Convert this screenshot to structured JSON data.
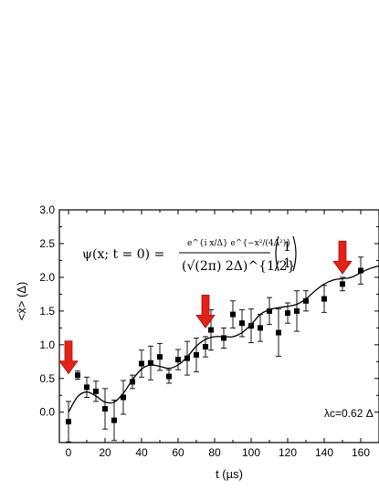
{
  "chart_data": {
    "type": "scatter",
    "xlabel": "t (µs)",
    "ylabel": "<x̂> (Δ)",
    "xlim": [
      -5,
      170
    ],
    "ylim": [
      -0.45,
      3.0
    ],
    "xticks": [
      "0",
      "20",
      "40",
      "60",
      "80",
      "100",
      "120",
      "140",
      "160"
    ],
    "yticks": [
      "0.0",
      "0.5",
      "1.0",
      "1.5",
      "2.0",
      "2.5",
      "3.0"
    ],
    "grid": false,
    "formula": {
      "lhs": "ψ(x; t = 0) =",
      "numerator": "e^{i x/Δ} e^{−x²/(4Δ²)}",
      "denominator": "(√(2π) 2Δ)^{1/2}",
      "vector": [
        "1",
        "1"
      ]
    },
    "annotation": "λc=0.62 Δ",
    "series": [
      {
        "marker": "square",
        "points": [
          {
            "x": 0,
            "y": -0.14,
            "err": 0.3
          },
          {
            "x": 5,
            "y": 0.55,
            "err": 0.06
          },
          {
            "x": 10,
            "y": 0.37,
            "err": 0.15
          },
          {
            "x": 15,
            "y": 0.31,
            "err": 0.15
          },
          {
            "x": 20,
            "y": 0.05,
            "err": 0.3
          },
          {
            "x": 25,
            "y": -0.12,
            "err": 0.3
          },
          {
            "x": 30,
            "y": 0.22,
            "err": 0.25
          },
          {
            "x": 35,
            "y": 0.45,
            "err": 0.1
          },
          {
            "x": 40,
            "y": 0.72,
            "err": 0.2
          },
          {
            "x": 45,
            "y": 0.73,
            "err": 0.25
          },
          {
            "x": 50,
            "y": 0.82,
            "err": 0.2
          },
          {
            "x": 55,
            "y": 0.53,
            "err": 0.1
          },
          {
            "x": 60,
            "y": 0.78,
            "err": 0.15
          },
          {
            "x": 65,
            "y": 0.8,
            "err": 0.25
          },
          {
            "x": 70,
            "y": 0.85,
            "err": 0.25
          },
          {
            "x": 75,
            "y": 0.97,
            "err": 0.15
          },
          {
            "x": 78,
            "y": 1.22,
            "err": 0.3
          },
          {
            "x": 85,
            "y": 1.1,
            "err": 0.15
          },
          {
            "x": 90,
            "y": 1.45,
            "err": 0.2
          },
          {
            "x": 95,
            "y": 1.32,
            "err": 0.2
          },
          {
            "x": 100,
            "y": 1.28,
            "err": 0.25
          },
          {
            "x": 105,
            "y": 1.25,
            "err": 0.2
          },
          {
            "x": 110,
            "y": 1.5,
            "err": 0.2
          },
          {
            "x": 115,
            "y": 1.18,
            "err": 0.35
          },
          {
            "x": 120,
            "y": 1.47,
            "err": 0.15
          },
          {
            "x": 125,
            "y": 1.5,
            "err": 0.3
          },
          {
            "x": 130,
            "y": 1.65,
            "err": 0.15
          },
          {
            "x": 140,
            "y": 1.68,
            "err": 0.2
          },
          {
            "x": 150,
            "y": 1.9,
            "err": 0.1
          },
          {
            "x": 160,
            "y": 2.1,
            "err": 0.2
          }
        ]
      }
    ],
    "fit_curve": [
      [
        0,
        0.0
      ],
      [
        5,
        0.23
      ],
      [
        10,
        0.3
      ],
      [
        15,
        0.24
      ],
      [
        20,
        0.15
      ],
      [
        25,
        0.15
      ],
      [
        30,
        0.28
      ],
      [
        35,
        0.48
      ],
      [
        40,
        0.64
      ],
      [
        45,
        0.7
      ],
      [
        50,
        0.68
      ],
      [
        55,
        0.65
      ],
      [
        60,
        0.7
      ],
      [
        65,
        0.82
      ],
      [
        70,
        0.98
      ],
      [
        75,
        1.08
      ],
      [
        80,
        1.12
      ],
      [
        85,
        1.12
      ],
      [
        90,
        1.12
      ],
      [
        95,
        1.18
      ],
      [
        100,
        1.3
      ],
      [
        105,
        1.45
      ],
      [
        110,
        1.52
      ],
      [
        115,
        1.55
      ],
      [
        120,
        1.57
      ],
      [
        125,
        1.6
      ],
      [
        130,
        1.68
      ],
      [
        135,
        1.8
      ],
      [
        140,
        1.9
      ],
      [
        145,
        1.96
      ],
      [
        150,
        1.98
      ],
      [
        155,
        2.0
      ],
      [
        160,
        2.07
      ],
      [
        165,
        2.13
      ],
      [
        170,
        2.17
      ]
    ],
    "arrows": [
      {
        "x": 0,
        "y_tip": 0.57,
        "color": "#e32119"
      },
      {
        "x": 75,
        "y_tip": 1.25,
        "color": "#e32119"
      },
      {
        "x": 150,
        "y_tip": 2.05,
        "color": "#e32119"
      }
    ],
    "colors": {
      "axes": "#000000",
      "data": "#000000",
      "arrow": "#e32119"
    }
  }
}
